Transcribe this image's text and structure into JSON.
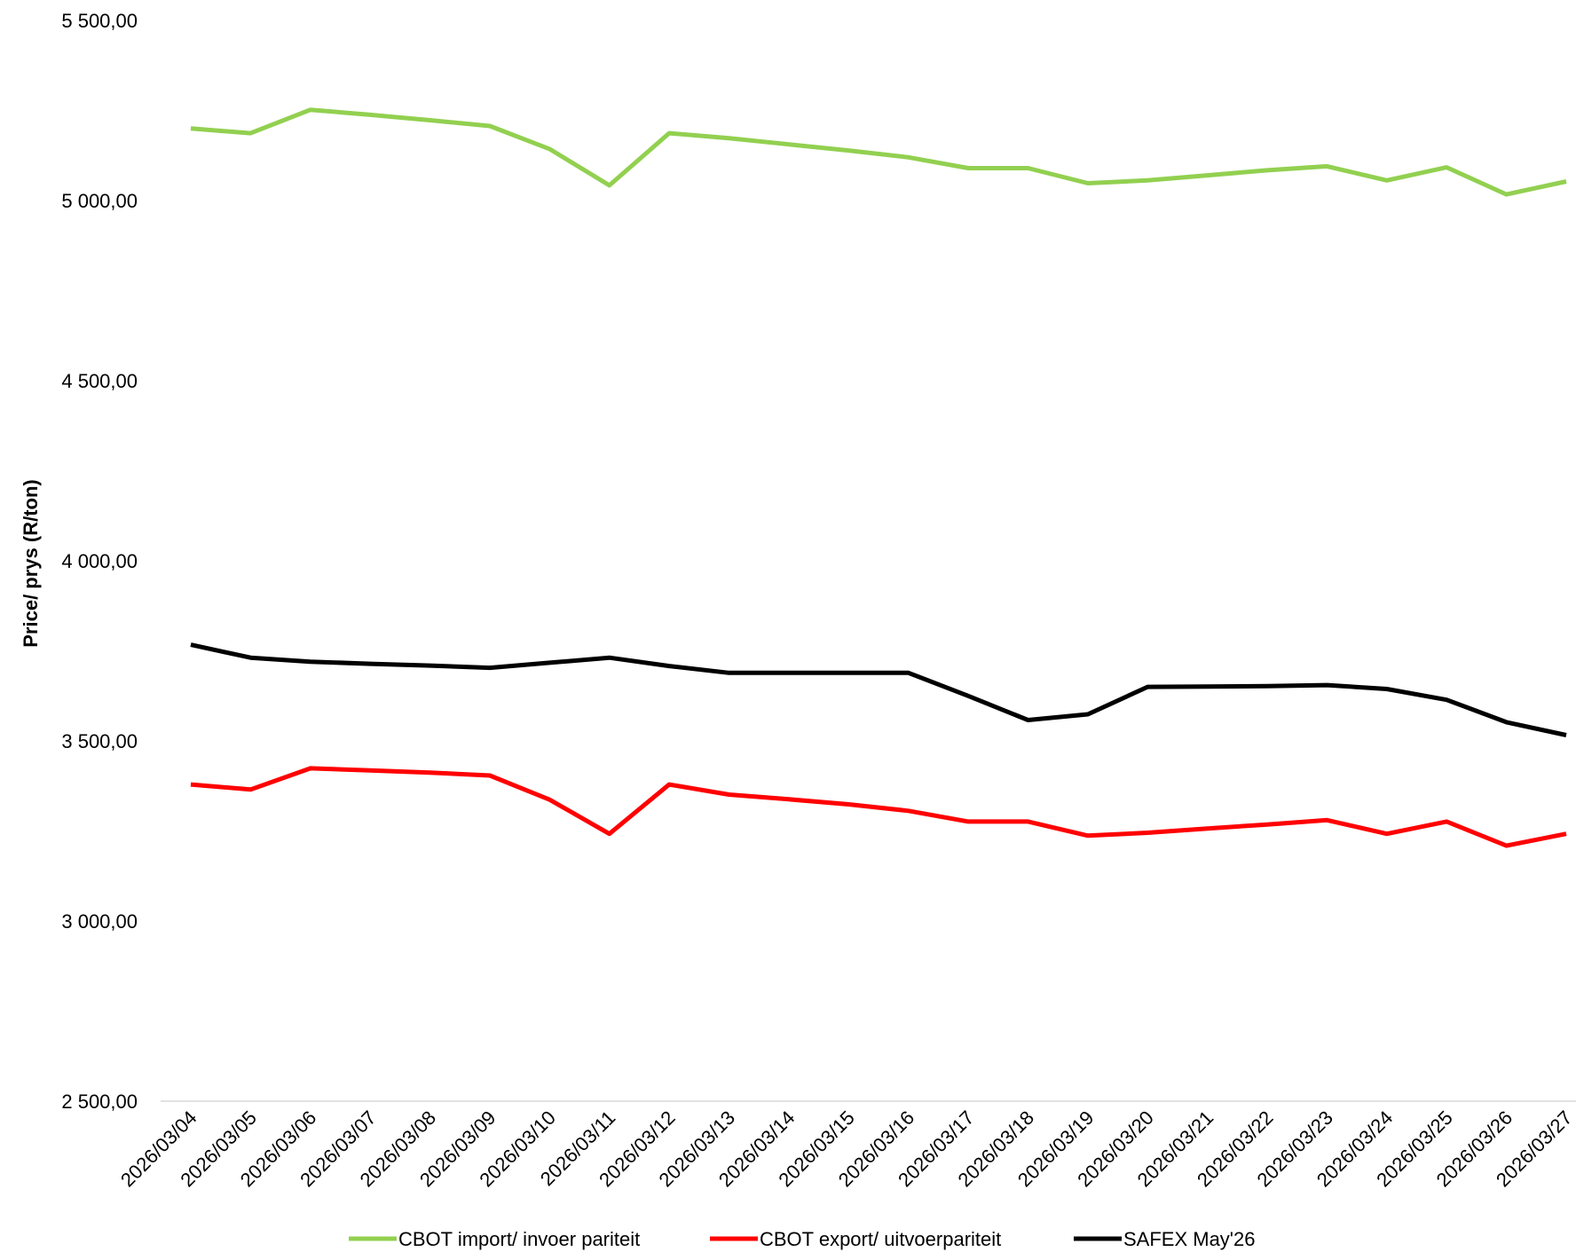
{
  "chart_data": {
    "type": "line",
    "y_label": "Price/ prys (R/ton)",
    "categories": [
      "2026/03/04",
      "2026/03/05",
      "2026/03/06",
      "2026/03/07",
      "2026/03/08",
      "2026/03/09",
      "2026/03/10",
      "2026/03/11",
      "2026/03/12",
      "2026/03/13",
      "2026/03/14",
      "2026/03/15",
      "2026/03/16",
      "2026/03/17",
      "2026/03/18",
      "2026/03/19",
      "2026/03/20",
      "2026/03/21",
      "2026/03/22",
      "2026/03/23",
      "2026/03/24",
      "2026/03/25",
      "2026/03/26",
      "2026/03/27"
    ],
    "series": [
      {
        "name": "CBOT import/ invoer pariteit",
        "color": "#92d050",
        "values": [
          5200,
          5187,
          5252,
          5238,
          5223,
          5207,
          5143,
          5042,
          5187,
          5173,
          5156,
          5139,
          5120,
          5090,
          5090,
          5048,
          5056,
          5070,
          5084,
          5095,
          5056,
          5092,
          5017,
          5053
        ]
      },
      {
        "name": "CBOT export/ uitvoerpariteit",
        "color": "#ff0000",
        "values": [
          3379,
          3365,
          3424,
          3418,
          3412,
          3404,
          3337,
          3242,
          3379,
          3351,
          3338,
          3324,
          3306,
          3276,
          3276,
          3237,
          3245,
          3257,
          3268,
          3280,
          3242,
          3276,
          3209,
          3242
        ]
      },
      {
        "name": "SAFEX May'26",
        "color": "#000000",
        "values": [
          3767,
          3731,
          3720,
          3714,
          3709,
          3703,
          3717,
          3731,
          3708,
          3689,
          3689,
          3689,
          3689,
          3625,
          3558,
          3574,
          3650,
          3651,
          3652,
          3655,
          3644,
          3614,
          3552,
          3516
        ]
      }
    ],
    "ylim": [
      2500,
      5500
    ],
    "yticks": [
      {
        "value": 2500,
        "label": "2 500,00"
      },
      {
        "value": 3000,
        "label": "3 000,00"
      },
      {
        "value": 3500,
        "label": "3 500,00"
      },
      {
        "value": 4000,
        "label": "4 000,00"
      },
      {
        "value": 4500,
        "label": "4 500,00"
      },
      {
        "value": 5000,
        "label": "5 000,00"
      },
      {
        "value": 5500,
        "label": "5 500,00"
      }
    ],
    "grid": false,
    "legend": "bottom"
  }
}
